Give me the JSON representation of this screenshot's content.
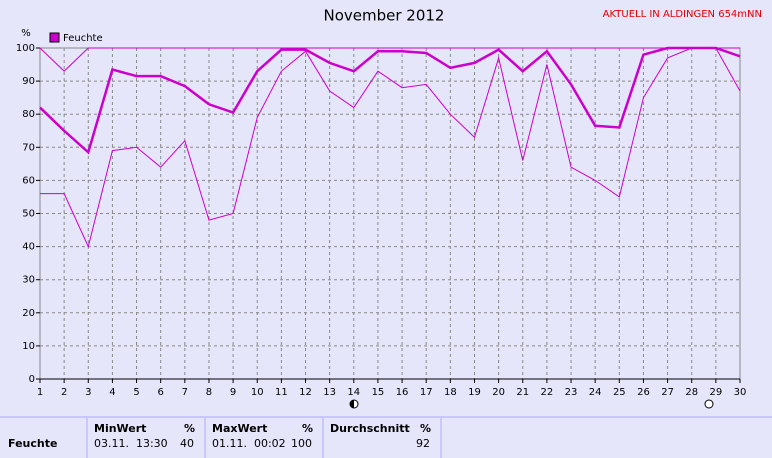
{
  "chart_data": {
    "type": "line",
    "title": "November 2012",
    "subtitle": "AKTUELL IN ALDINGEN 654mNN",
    "y_label": "%",
    "x": [
      1,
      2,
      3,
      4,
      5,
      6,
      7,
      8,
      9,
      10,
      11,
      12,
      13,
      14,
      15,
      16,
      17,
      18,
      19,
      20,
      21,
      22,
      23,
      24,
      25,
      26,
      27,
      28,
      29,
      30
    ],
    "xlim": [
      1,
      30
    ],
    "xticks": [
      1,
      2,
      3,
      4,
      5,
      6,
      7,
      8,
      9,
      10,
      11,
      12,
      13,
      14,
      15,
      16,
      17,
      18,
      19,
      20,
      21,
      22,
      23,
      24,
      25,
      26,
      27,
      28,
      29,
      30
    ],
    "ylim": [
      0,
      100
    ],
    "yticks": [
      0,
      10,
      20,
      30,
      40,
      50,
      60,
      70,
      80,
      90,
      100
    ],
    "grid": true,
    "series": [
      {
        "name": "Feuchte",
        "color": "#cc00cc",
        "width": 2.5,
        "values": [
          82,
          75,
          68.5,
          93.5,
          91.5,
          91.5,
          88.5,
          83,
          80.5,
          93,
          99.5,
          99.5,
          95.5,
          93,
          99,
          99,
          98.5,
          94,
          95.5,
          99.5,
          93,
          99,
          89,
          76.5,
          76,
          98,
          100,
          100,
          100,
          97.5
        ]
      },
      {
        "color": "#cc00cc",
        "width": 1,
        "values": [
          100,
          93,
          100,
          100,
          100,
          100,
          100,
          100,
          100,
          100,
          100,
          100,
          100,
          100,
          100,
          100,
          100,
          100,
          100,
          100,
          100,
          100,
          100,
          100,
          100,
          100,
          100,
          100,
          100,
          100
        ]
      },
      {
        "color": "#cc00cc",
        "width": 1,
        "values": [
          56,
          56,
          40,
          69,
          70,
          64,
          72,
          48,
          50,
          79,
          93,
          99,
          87,
          82,
          93,
          88,
          89,
          80,
          73,
          97,
          66,
          95,
          64,
          60,
          55,
          85,
          97,
          100,
          100,
          87
        ]
      }
    ]
  },
  "table": {
    "headers": [
      {
        "label": "MinWert",
        "unit": "%"
      },
      {
        "label": "MaxWert",
        "unit": "%"
      },
      {
        "label": "Durchschnitt",
        "unit": "%"
      }
    ],
    "rows": [
      {
        "label": "Feuchte",
        "cells": [
          {
            "time": "03.11.  13:30",
            "value": "40"
          },
          {
            "time": "01.11.  00:02",
            "value": "100"
          },
          {
            "time": "",
            "value": "92"
          }
        ]
      }
    ]
  }
}
